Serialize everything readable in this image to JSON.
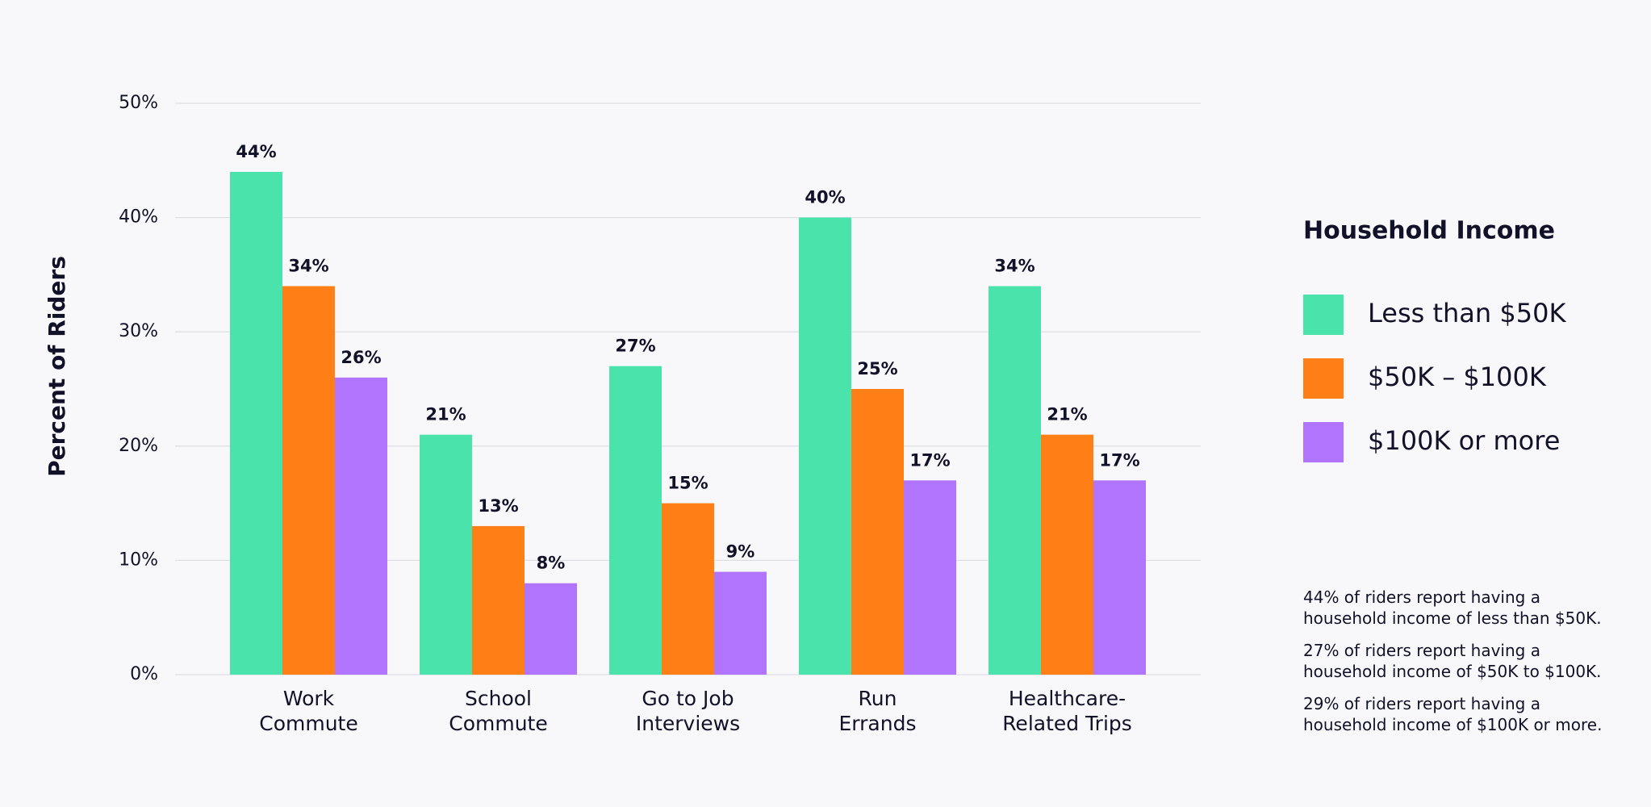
{
  "chart_data": {
    "type": "bar",
    "y_label": "Percent of Riders",
    "categories": [
      "Work\nCommute",
      "School\nCommute",
      "Go to Job\nInterviews",
      "Run\nErrands",
      "Healthcare-\nRelated Trips"
    ],
    "series": [
      {
        "name": "Less than $50K",
        "color": "#4ae3ac",
        "values": [
          44,
          21,
          27,
          40,
          34
        ],
        "value_labels": [
          "44%",
          "21%",
          "27%",
          "40%",
          "34%"
        ]
      },
      {
        "name": "$50K – $100K",
        "color": "#fd7f16",
        "values": [
          34,
          13,
          15,
          25,
          21
        ],
        "value_labels": [
          "34%",
          "13%",
          "15%",
          "25%",
          "21%"
        ]
      },
      {
        "name": "$100K or more",
        "color": "#b074fd",
        "values": [
          26,
          8,
          9,
          17,
          17
        ],
        "value_labels": [
          "26%",
          "8%",
          "9%",
          "17%",
          "17%"
        ]
      }
    ],
    "ylim": [
      0,
      50
    ],
    "yticks": [
      {
        "value": 0,
        "label": "0%"
      },
      {
        "value": 10,
        "label": "10%"
      },
      {
        "value": 20,
        "label": "20%"
      },
      {
        "value": 30,
        "label": "30%"
      },
      {
        "value": 40,
        "label": "40%"
      },
      {
        "value": 50,
        "label": "50%"
      }
    ],
    "grid": true,
    "legend_title": "Household Income",
    "legend_position": "right",
    "notes": [
      "44% of riders report having a\nhousehold income of less than $50K.",
      "27% of riders report having a\nhousehold income of $50K to $100K.",
      "29% of riders report having a\nhousehold income of $100K or more."
    ]
  }
}
